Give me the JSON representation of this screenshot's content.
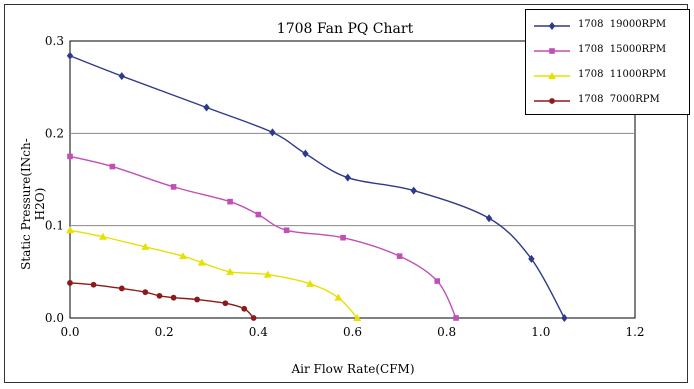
{
  "chart_data": {
    "type": "line",
    "title": "1708  Fan PQ Chart",
    "xlabel": "Air Flow Rate(CFM)",
    "ylabel": "Static Pressure(INch-H2O)",
    "xlim": [
      0,
      1.2
    ],
    "ylim": [
      0,
      0.3
    ],
    "xticks": [
      "0.0",
      "0.2",
      "0.4",
      "0.6",
      "0.8",
      "1.0",
      "1.2"
    ],
    "yticks": [
      "0.0",
      "0.1",
      "0.2",
      "0.3"
    ],
    "grid": "horizontal",
    "legend_position": "top-right",
    "series": [
      {
        "name": "1708  19000RPM",
        "color": "#2e3a8c",
        "marker": "diamond",
        "x": [
          0.0,
          0.11,
          0.29,
          0.43,
          0.5,
          0.59,
          0.73,
          0.89,
          0.98,
          1.05
        ],
        "y": [
          0.284,
          0.262,
          0.228,
          0.201,
          0.178,
          0.152,
          0.138,
          0.108,
          0.064,
          0.0
        ]
      },
      {
        "name": "1708  15000RPM",
        "color": "#c04fb6",
        "marker": "square",
        "x": [
          0.0,
          0.09,
          0.22,
          0.34,
          0.4,
          0.46,
          0.58,
          0.7,
          0.78,
          0.82
        ],
        "y": [
          0.175,
          0.164,
          0.142,
          0.126,
          0.112,
          0.095,
          0.087,
          0.067,
          0.04,
          0.0
        ]
      },
      {
        "name": "1708  11000RPM",
        "color": "#e8e000",
        "marker": "triangle",
        "x": [
          0.0,
          0.07,
          0.16,
          0.24,
          0.28,
          0.34,
          0.42,
          0.51,
          0.57,
          0.61
        ],
        "y": [
          0.095,
          0.088,
          0.077,
          0.067,
          0.06,
          0.05,
          0.047,
          0.037,
          0.022,
          0.0
        ]
      },
      {
        "name": "1708  7000RPM",
        "color": "#8b1a1a",
        "marker": "circle",
        "x": [
          0.0,
          0.05,
          0.11,
          0.16,
          0.19,
          0.22,
          0.27,
          0.33,
          0.37,
          0.39
        ],
        "y": [
          0.038,
          0.036,
          0.032,
          0.028,
          0.024,
          0.022,
          0.02,
          0.016,
          0.01,
          0.0
        ]
      }
    ]
  }
}
